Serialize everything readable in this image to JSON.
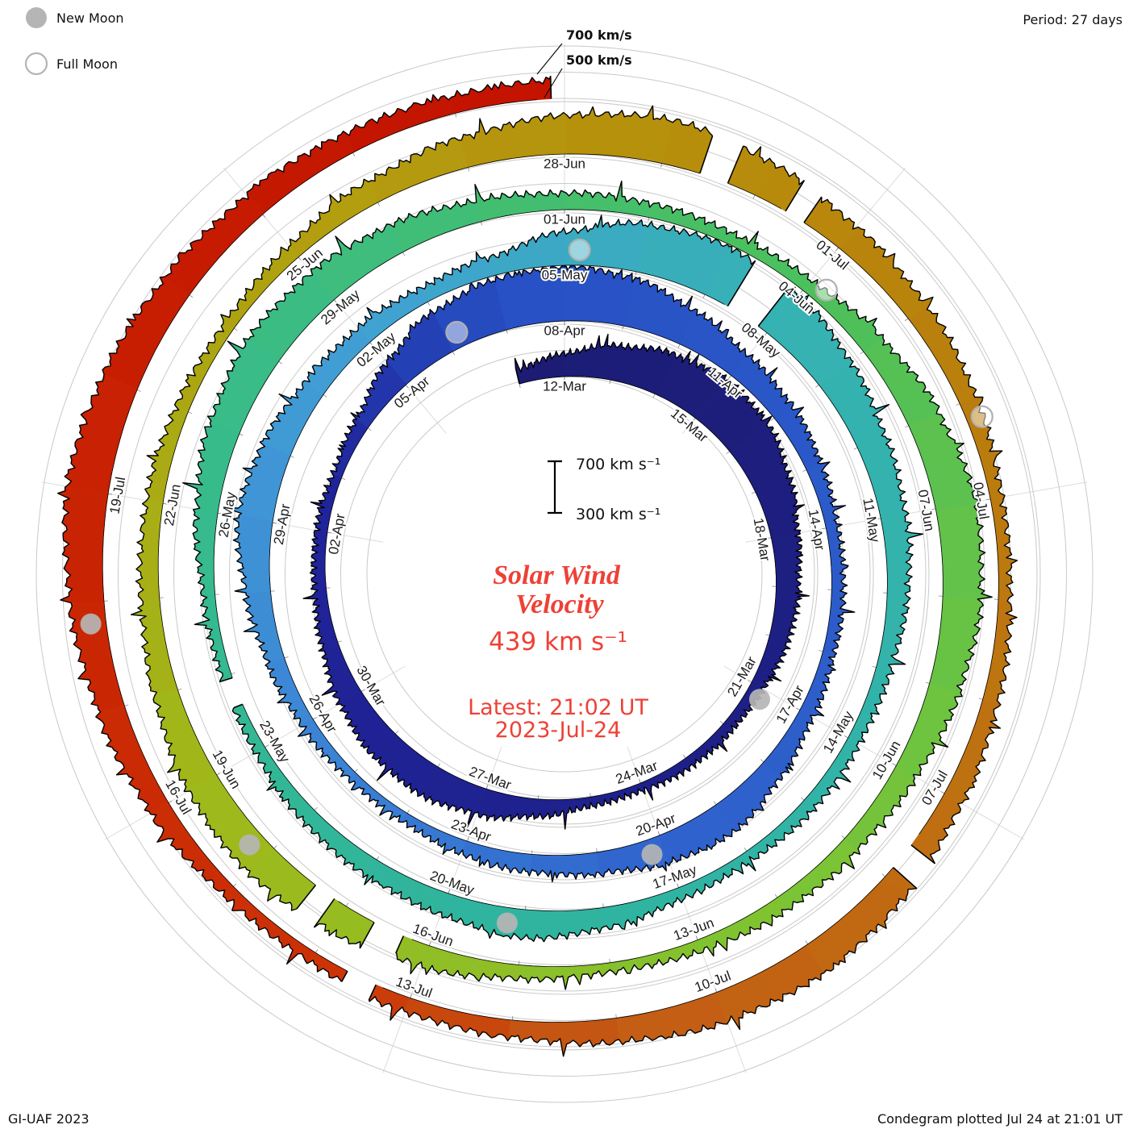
{
  "colors": {
    "accent": "#ee4136",
    "grid": "#c9c9c9",
    "moon_gray": "#b5b5b5"
  },
  "legend": {
    "new_moon": "New Moon",
    "full_moon": "Full Moon"
  },
  "header": {
    "period": "Period: 27 days"
  },
  "rings": {
    "outer_label": "700 km/s",
    "inner_label": "500 km/s"
  },
  "center": {
    "title1": "Solar Wind",
    "title2": "Velocity",
    "value": "439 km s⁻¹",
    "latest1": "Latest: 21:02 UT",
    "latest2": "2023-Jul-24",
    "scale_top": "700 km s⁻¹",
    "scale_bottom": "300 km s⁻¹"
  },
  "footer": {
    "left": "GI-UAF 2023",
    "right": "Condegram plotted Jul 24 at 21:01 UT"
  },
  "chart_data": {
    "type": "area",
    "subtype": "spiral-condegram-polar",
    "title": "Solar Wind Velocity",
    "units": "km/s",
    "period_days": 27,
    "start_date": "2023-03-11",
    "end_date": "2023-07-24",
    "latest_time": "21:02 UT",
    "latest_value_km_s": 439,
    "baseline_value": 300,
    "ring_gridlines_km_s": [
      300,
      500,
      700
    ],
    "value_range_km_s": [
      300,
      800
    ],
    "start_day": 0,
    "end_day": 135.88,
    "date_labels": [
      {
        "label": "12-Mar",
        "day": 1
      },
      {
        "label": "15-Mar",
        "day": 4
      },
      {
        "label": "18-Mar",
        "day": 7
      },
      {
        "label": "21-Mar",
        "day": 10
      },
      {
        "label": "24-Mar",
        "day": 13
      },
      {
        "label": "27-Mar",
        "day": 16
      },
      {
        "label": "30-Mar",
        "day": 19
      },
      {
        "label": "02-Apr",
        "day": 22
      },
      {
        "label": "05-Apr",
        "day": 25
      },
      {
        "label": "08-Apr",
        "day": 28
      },
      {
        "label": "11-Apr",
        "day": 31
      },
      {
        "label": "14-Apr",
        "day": 34
      },
      {
        "label": "17-Apr",
        "day": 37
      },
      {
        "label": "20-Apr",
        "day": 40
      },
      {
        "label": "23-Apr",
        "day": 43
      },
      {
        "label": "26-Apr",
        "day": 46
      },
      {
        "label": "29-Apr",
        "day": 49
      },
      {
        "label": "02-May",
        "day": 52
      },
      {
        "label": "05-May",
        "day": 55
      },
      {
        "label": "08-May",
        "day": 58
      },
      {
        "label": "11-May",
        "day": 61
      },
      {
        "label": "14-May",
        "day": 64
      },
      {
        "label": "17-May",
        "day": 67
      },
      {
        "label": "20-May",
        "day": 70
      },
      {
        "label": "23-May",
        "day": 73
      },
      {
        "label": "26-May",
        "day": 76
      },
      {
        "label": "29-May",
        "day": 79
      },
      {
        "label": "01-Jun",
        "day": 82
      },
      {
        "label": "04-Jun",
        "day": 85
      },
      {
        "label": "07-Jun",
        "day": 88
      },
      {
        "label": "10-Jun",
        "day": 91
      },
      {
        "label": "13-Jun",
        "day": 94
      },
      {
        "label": "16-Jun",
        "day": 97
      },
      {
        "label": "19-Jun",
        "day": 100
      },
      {
        "label": "22-Jun",
        "day": 103
      },
      {
        "label": "25-Jun",
        "day": 106
      },
      {
        "label": "28-Jun",
        "day": 109
      },
      {
        "label": "01-Jul",
        "day": 112
      },
      {
        "label": "04-Jul",
        "day": 115
      },
      {
        "label": "07-Jul",
        "day": 118
      },
      {
        "label": "10-Jul",
        "day": 121
      },
      {
        "label": "13-Jul",
        "day": 124
      },
      {
        "label": "16-Jul",
        "day": 127
      },
      {
        "label": "19-Jul",
        "day": 130
      }
    ],
    "daily_velocity_km_s_estimated": [
      420,
      480,
      560,
      640,
      690,
      650,
      580,
      520,
      470,
      440,
      410,
      390,
      370,
      360,
      380,
      430,
      500,
      560,
      540,
      480,
      430,
      400,
      380,
      370,
      420,
      520,
      630,
      700,
      720,
      660,
      580,
      510,
      460,
      420,
      400,
      390,
      380,
      420,
      480,
      540,
      520,
      470,
      430,
      400,
      380,
      370,
      390,
      440,
      500,
      560,
      530,
      480,
      440,
      410,
      450,
      560,
      660,
      710,
      670,
      600,
      540,
      490,
      450,
      420,
      400,
      390,
      380,
      400,
      450,
      510,
      480,
      440,
      410,
      390,
      380,
      400,
      460,
      540,
      600,
      570,
      520,
      470,
      430,
      400,
      390,
      410,
      470,
      550,
      620,
      590,
      530,
      480,
      440,
      410,
      390,
      380,
      400,
      460,
      530,
      570,
      540,
      490,
      450,
      420,
      400,
      390,
      410,
      470,
      540,
      600,
      630,
      580,
      520,
      470,
      430,
      400,
      390,
      410,
      460,
      520,
      560,
      530,
      480,
      440,
      410,
      390,
      400,
      450,
      510,
      570,
      610,
      580,
      540,
      490,
      450,
      439
    ],
    "color_stops": [
      {
        "day": 0,
        "color": "#1c1c74"
      },
      {
        "day": 23,
        "color": "#20249c"
      },
      {
        "day": 27,
        "color": "#2750c4"
      },
      {
        "day": 40,
        "color": "#2f63cd"
      },
      {
        "day": 46,
        "color": "#3c86d6"
      },
      {
        "day": 52,
        "color": "#41a0d4"
      },
      {
        "day": 58,
        "color": "#35b2b2"
      },
      {
        "day": 70,
        "color": "#2fb49e"
      },
      {
        "day": 78,
        "color": "#3abc86"
      },
      {
        "day": 85,
        "color": "#4cc05c"
      },
      {
        "day": 93,
        "color": "#7ec432"
      },
      {
        "day": 100,
        "color": "#a0b81a"
      },
      {
        "day": 107,
        "color": "#b39c0e"
      },
      {
        "day": 112,
        "color": "#b8860b"
      },
      {
        "day": 118,
        "color": "#bf6f12"
      },
      {
        "day": 122,
        "color": "#c45c14"
      },
      {
        "day": 125,
        "color": "#cc3206"
      },
      {
        "day": 135,
        "color": "#c41400"
      }
    ],
    "new_moon_days": [
      10.2,
      40.2,
      69.2,
      99.2,
      128.8
    ],
    "new_moon_dates": [
      "2023-03-21",
      "2023-04-20",
      "2023-05-19",
      "2023-06-18",
      "2023-07-17"
    ],
    "full_moon_days": [
      26.2,
      55.2,
      85.2,
      114.2
    ],
    "full_moon_dates": [
      "2023-04-06",
      "2023-05-05",
      "2023-06-04",
      "2023-07-03"
    ],
    "gaps": [
      {
        "day": 57.35,
        "span": 0.5
      },
      {
        "day": 73.6,
        "span": 0.35
      },
      {
        "day": 97.3,
        "span": 0.35
      },
      {
        "day": 98.15,
        "span": 0.25
      },
      {
        "day": 110.4,
        "span": 0.3
      },
      {
        "day": 111.35,
        "span": 0.22
      },
      {
        "day": 118.6,
        "span": 0.28
      },
      {
        "day": 124.35,
        "span": 0.3
      }
    ],
    "layout_hints": {
      "direction": "clockwise",
      "zero_angle": "top",
      "grid": "on",
      "legend_position": "top-left"
    }
  }
}
